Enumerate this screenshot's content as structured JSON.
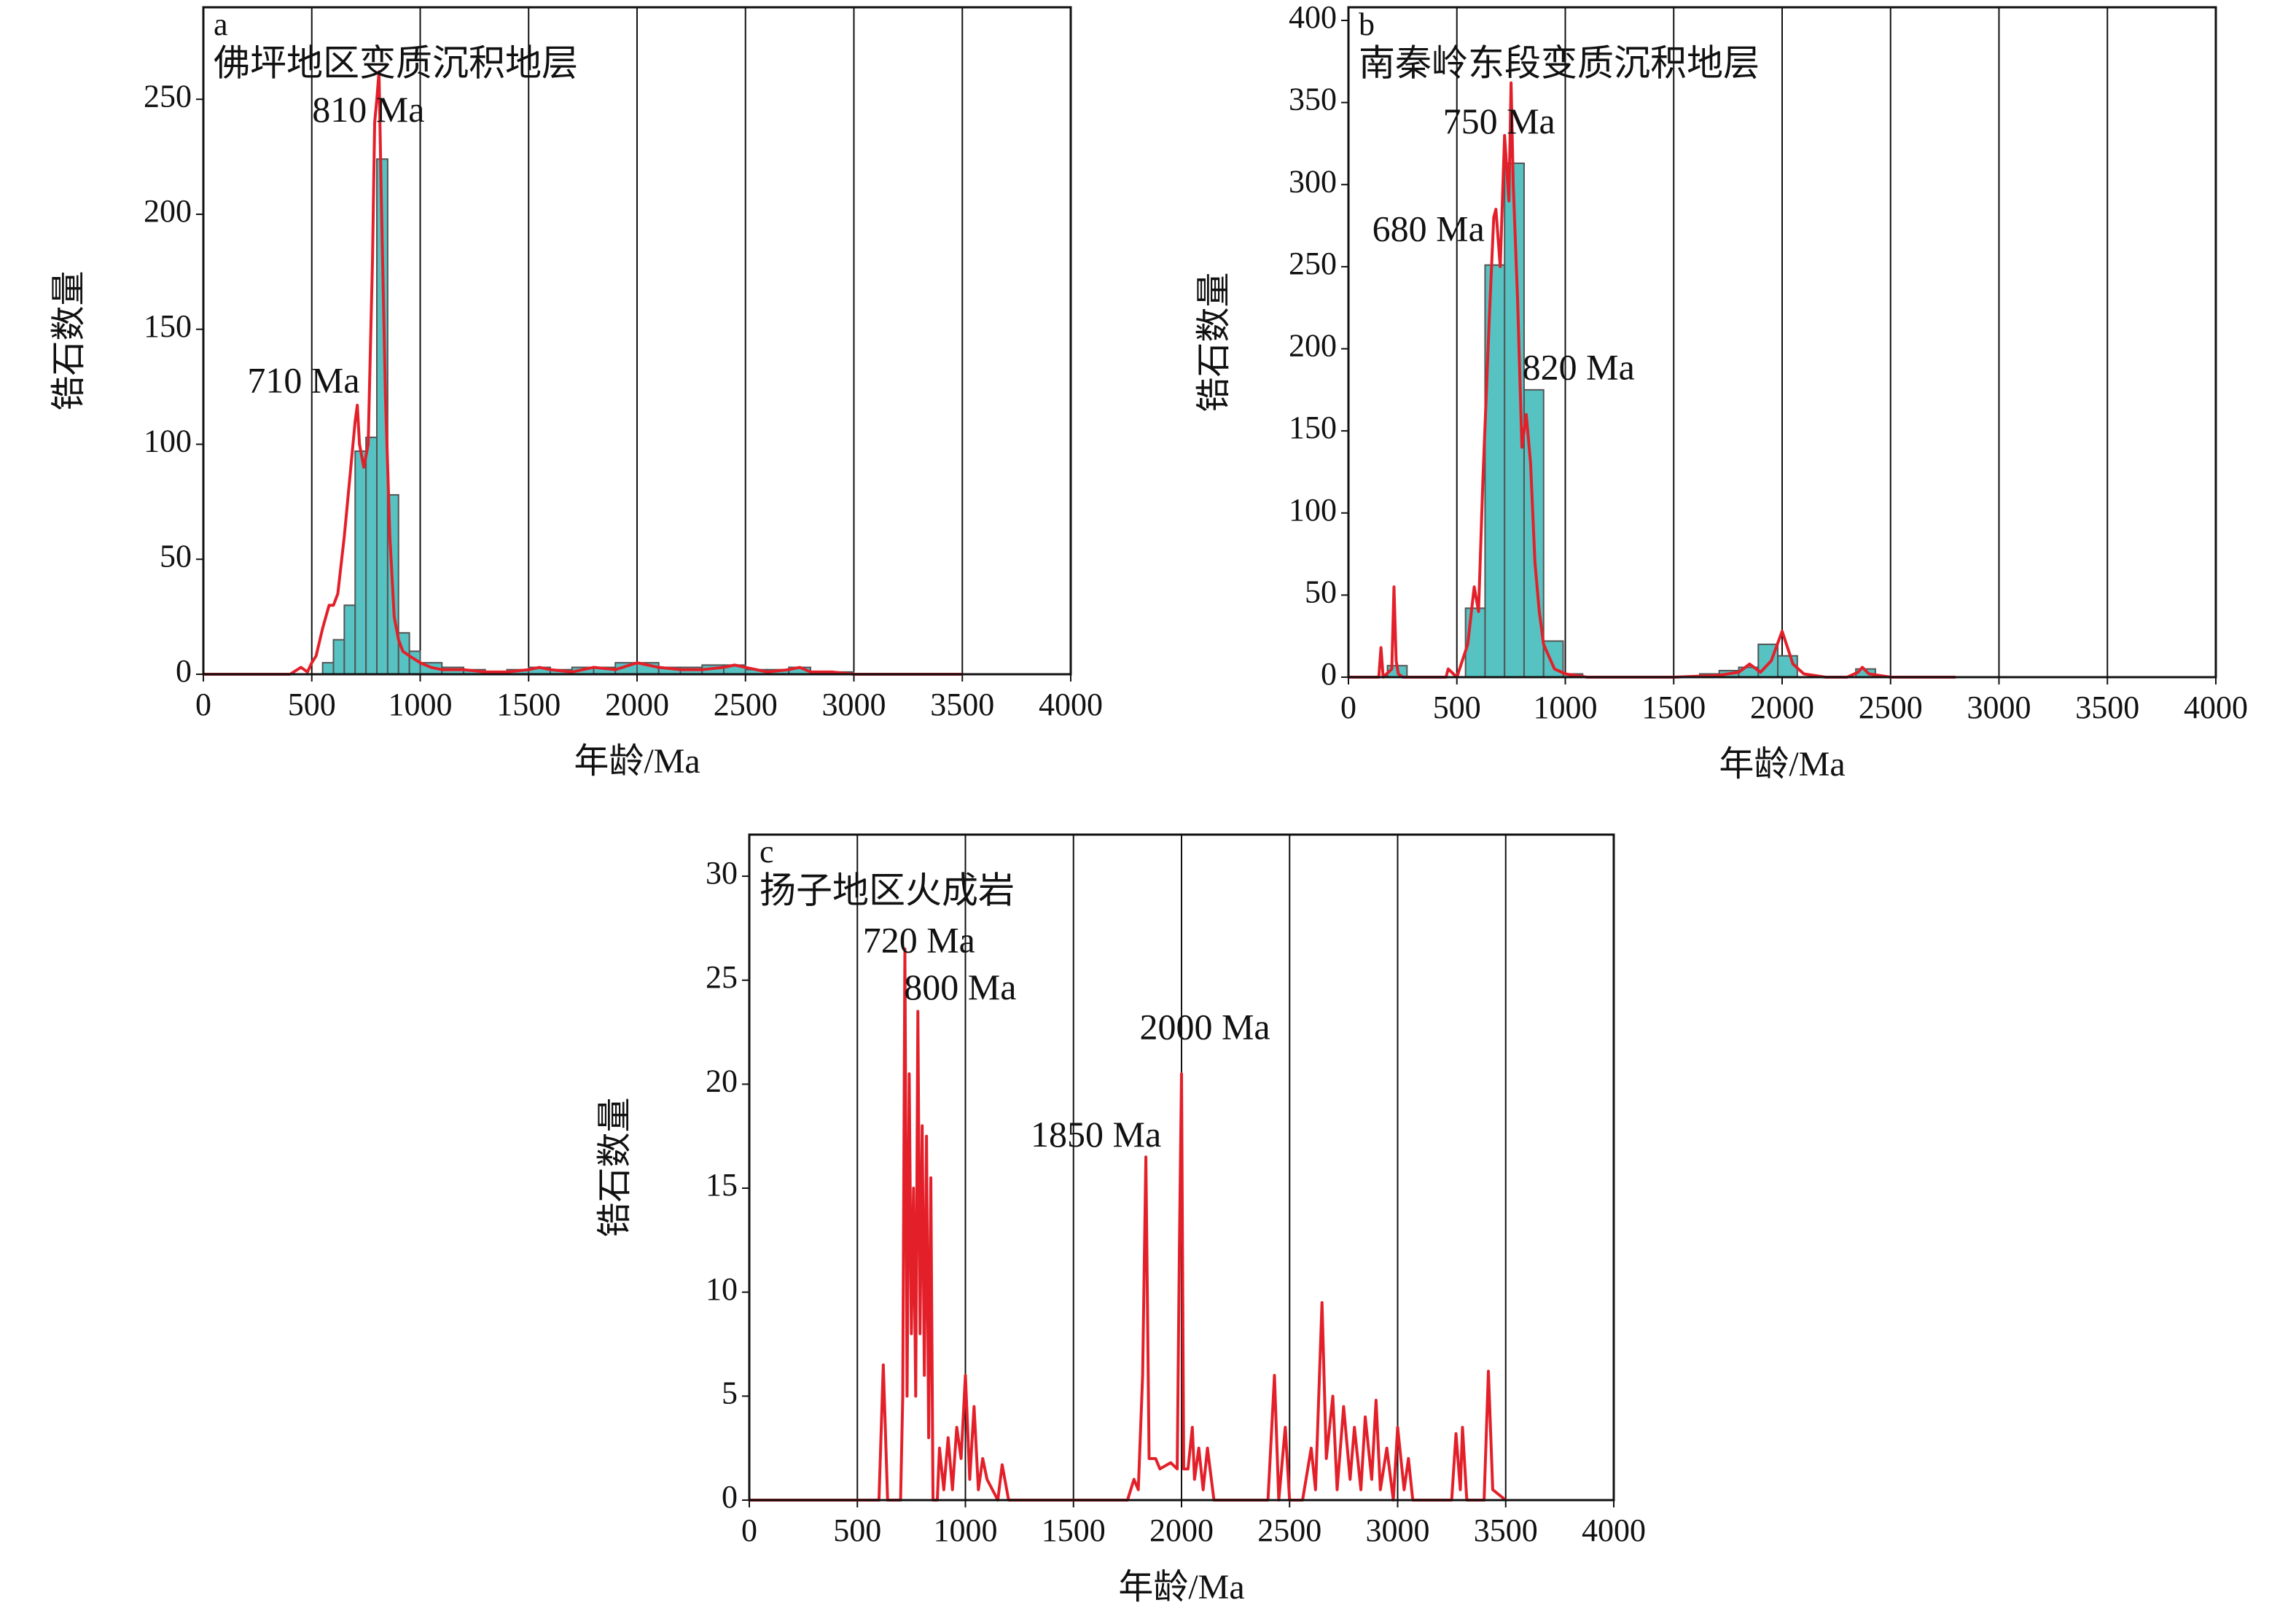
{
  "chart_data": [
    {
      "type": "histogram",
      "label": "a",
      "title": "佛坪地区变质沉积地层",
      "annotations": [
        "810 Ma",
        "710 Ma"
      ],
      "xlabel": "年龄/Ma",
      "ylabel": "锆石数量",
      "xlim": [
        0,
        4000
      ],
      "xticks": [
        0,
        500,
        1000,
        1500,
        2000,
        2500,
        3000,
        3500,
        4000
      ],
      "ylim": [
        0,
        290
      ],
      "yticks": [
        0,
        50,
        100,
        150,
        200,
        250
      ],
      "grid": true,
      "bar_color": "#56c2c2",
      "bins": [
        550,
        600,
        650,
        700,
        750,
        800,
        850,
        900,
        950,
        1000,
        1100,
        1200,
        1300,
        1400,
        1500,
        1600,
        1700,
        1800,
        1900,
        2000,
        2100,
        2200,
        2300,
        2400,
        2500,
        2600,
        2700,
        2800,
        2900,
        3000
      ],
      "counts": [
        5,
        15,
        30,
        97,
        103,
        224,
        78,
        18,
        10,
        5,
        3,
        2,
        1,
        2,
        3,
        2,
        3,
        3,
        5,
        5,
        3,
        3,
        4,
        4,
        2,
        2,
        3,
        1,
        1
      ],
      "line": {
        "color": "#e3202a",
        "x": [
          0,
          400,
          450,
          480,
          500,
          520,
          550,
          580,
          600,
          620,
          650,
          680,
          700,
          710,
          720,
          740,
          760,
          780,
          790,
          800,
          810,
          820,
          840,
          860,
          880,
          900,
          920,
          950,
          1000,
          1050,
          1100,
          1200,
          1300,
          1400,
          1500,
          1550,
          1600,
          1700,
          1800,
          1900,
          2000,
          2050,
          2100,
          2200,
          2300,
          2400,
          2450,
          2500,
          2600,
          2700,
          2750,
          2800,
          2900,
          3000,
          3200,
          3500
        ],
        "values": [
          0,
          0,
          3,
          1,
          5,
          8,
          20,
          30,
          30,
          35,
          60,
          90,
          110,
          117,
          100,
          90,
          100,
          180,
          240,
          250,
          262,
          210,
          120,
          60,
          25,
          15,
          10,
          8,
          5,
          3,
          2,
          2,
          1,
          1,
          2,
          3,
          2,
          1,
          3,
          2,
          5,
          4,
          3,
          2,
          2,
          3,
          4,
          3,
          1,
          2,
          3,
          1,
          1,
          0,
          0,
          0
        ]
      }
    },
    {
      "type": "histogram",
      "label": "b",
      "title": "南秦岭东段变质沉积地层",
      "annotations": [
        "750 Ma",
        "680 Ma",
        "820 Ma"
      ],
      "xlabel": "年龄/Ma",
      "ylabel": "锆石数量",
      "xlim": [
        0,
        4000
      ],
      "xticks": [
        0,
        500,
        1000,
        1500,
        2000,
        2500,
        3000,
        3500,
        4000
      ],
      "ylim": [
        0,
        408
      ],
      "yticks": [
        0,
        50,
        100,
        150,
        200,
        250,
        300,
        350,
        400
      ],
      "grid": true,
      "bar_color": "#56c2c2",
      "bins": [
        90,
        180,
        270,
        360,
        450,
        540,
        630,
        720,
        810,
        900,
        990,
        1080,
        1170,
        1260,
        1350,
        1440,
        1530,
        1620,
        1710,
        1800,
        1890,
        1980,
        2070,
        2160,
        2250,
        2340,
        2430,
        2520
      ],
      "counts": [
        0,
        7,
        0,
        0,
        0,
        42,
        251,
        313,
        175,
        22,
        2,
        0,
        0,
        0,
        0,
        0,
        0,
        2,
        4,
        6,
        20,
        13,
        0,
        0,
        0,
        5,
        0
      ],
      "line": {
        "color": "#e3202a",
        "x": [
          0,
          100,
          140,
          150,
          160,
          200,
          210,
          220,
          230,
          250,
          300,
          400,
          450,
          460,
          500,
          550,
          580,
          600,
          620,
          650,
          670,
          680,
          700,
          720,
          740,
          750,
          760,
          780,
          800,
          820,
          840,
          860,
          880,
          900,
          950,
          1000,
          1100,
          1500,
          1700,
          1800,
          1850,
          1900,
          1950,
          2000,
          2020,
          2050,
          2100,
          2200,
          2300,
          2350,
          2370,
          2400,
          2500,
          2800
        ],
        "values": [
          0,
          0,
          0,
          18,
          0,
          5,
          55,
          10,
          2,
          0,
          0,
          0,
          0,
          5,
          0,
          20,
          55,
          40,
          120,
          220,
          280,
          285,
          250,
          330,
          290,
          362,
          300,
          230,
          140,
          160,
          130,
          70,
          40,
          20,
          5,
          2,
          0,
          0,
          1,
          3,
          8,
          3,
          10,
          28,
          20,
          8,
          2,
          0,
          0,
          3,
          6,
          2,
          0,
          0
        ]
      }
    },
    {
      "type": "line",
      "label": "c",
      "title": "扬子地区火成岩",
      "annotations": [
        "720 Ma",
        "800 Ma",
        "2000 Ma",
        "1850 Ma"
      ],
      "xlabel": "年龄/Ma",
      "ylabel": "锆石数量",
      "xlim": [
        0,
        4000
      ],
      "xticks": [
        0,
        500,
        1000,
        1500,
        2000,
        2500,
        3000,
        3500,
        4000
      ],
      "ylim": [
        0,
        32
      ],
      "yticks": [
        0,
        5,
        10,
        15,
        20,
        25,
        30
      ],
      "grid": true,
      "line": {
        "color": "#e3202a",
        "x": [
          0,
          600,
          620,
          640,
          700,
          710,
          720,
          730,
          740,
          750,
          760,
          770,
          780,
          790,
          800,
          810,
          820,
          830,
          840,
          850,
          870,
          880,
          900,
          920,
          940,
          960,
          980,
          1000,
          1020,
          1040,
          1060,
          1080,
          1100,
          1150,
          1170,
          1200,
          1750,
          1780,
          1800,
          1820,
          1835,
          1850,
          1880,
          1900,
          1950,
          1980,
          1990,
          2000,
          2010,
          2030,
          2050,
          2060,
          2080,
          2100,
          2120,
          2150,
          2400,
          2430,
          2450,
          2480,
          2500,
          2560,
          2600,
          2620,
          2650,
          2670,
          2700,
          2720,
          2750,
          2780,
          2800,
          2830,
          2850,
          2880,
          2900,
          2920,
          2950,
          2980,
          3000,
          3030,
          3050,
          3070,
          3250,
          3270,
          3290,
          3300,
          3320,
          3400,
          3420,
          3440,
          3500
        ],
        "values": [
          0,
          0,
          6.5,
          0,
          0,
          5,
          26.5,
          5,
          20.5,
          8,
          15,
          5,
          23.5,
          8,
          18,
          6,
          17.5,
          3,
          15.5,
          0,
          0,
          2.5,
          0.5,
          3,
          0.5,
          3.5,
          2,
          6,
          1,
          4.5,
          0.5,
          2,
          1,
          0,
          1.7,
          0,
          0,
          1,
          0.5,
          6,
          16.5,
          2,
          2,
          1.5,
          1.8,
          1.5,
          12,
          20.5,
          1.5,
          1.5,
          3.5,
          1,
          2.5,
          0.5,
          2.5,
          0,
          0,
          6,
          0,
          3.5,
          0,
          0,
          2.5,
          0.5,
          9.5,
          2,
          5,
          0.5,
          4.5,
          1,
          3.5,
          0.5,
          4,
          1,
          4.8,
          0.5,
          2.5,
          0,
          3.5,
          0.5,
          2,
          0,
          0,
          3.2,
          0.5,
          3.5,
          0,
          0,
          6.2,
          0.5,
          0
        ]
      }
    }
  ]
}
